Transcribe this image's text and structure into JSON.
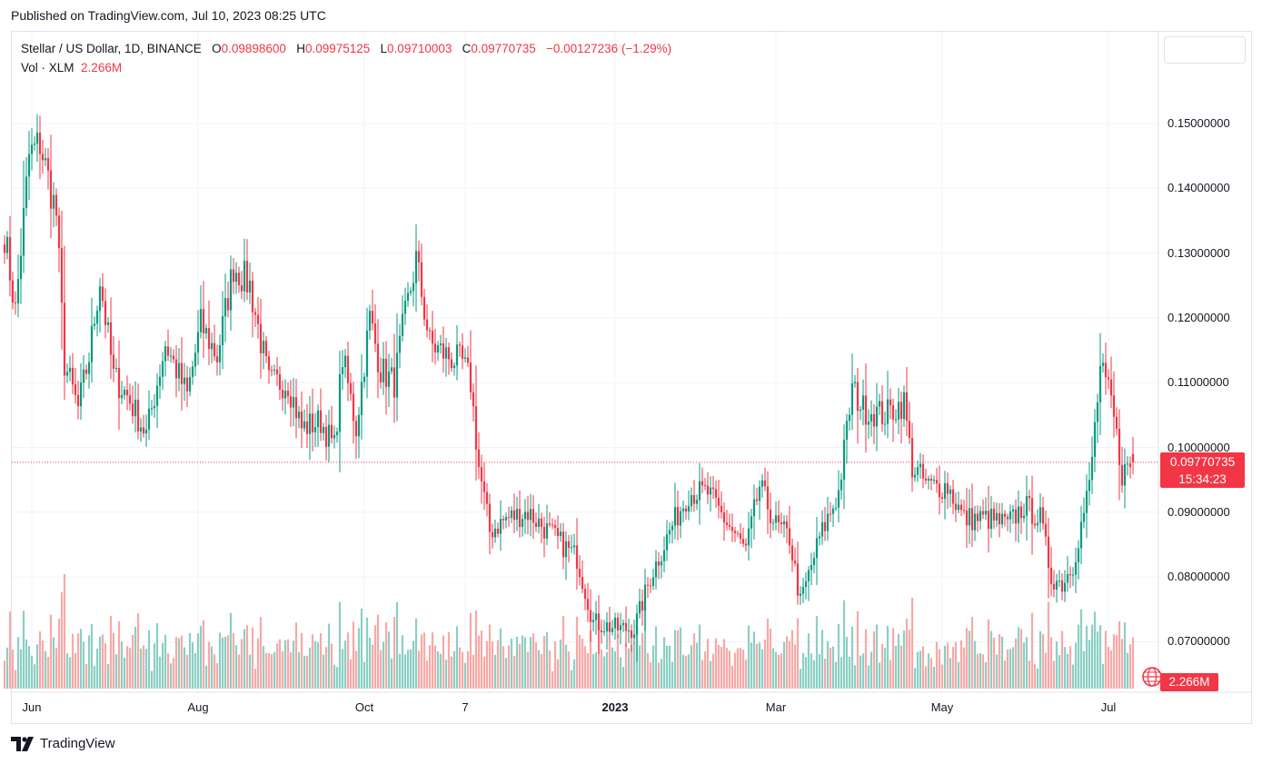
{
  "header": {
    "published": "Published on TradingView.com, Jul 10, 2023 08:25 UTC"
  },
  "legend": {
    "symbol": "Stellar / US Dollar, 1D, BINANCE",
    "o_label": "O",
    "o_value": "0.09898600",
    "h_label": "H",
    "h_value": "0.09975125",
    "l_label": "L",
    "l_value": "0.09710003",
    "c_label": "C",
    "c_value": "0.09770735",
    "change": "−0.00127236 (−1.29%)",
    "vol_label": "Vol · XLM",
    "vol_value": "2.266M"
  },
  "price_badge": {
    "price": "0.09770735",
    "countdown": "15:34:23"
  },
  "volume_badge": "2.266M",
  "footer": {
    "brand": "TradingView"
  },
  "colors": {
    "up": "#089981",
    "down": "#f23645",
    "vol_up": "#8bcfc4",
    "vol_down": "#f7a9a7",
    "grid": "#f0f3fa",
    "border": "#e0e3eb"
  },
  "chart_data": {
    "type": "candlestick",
    "title": "Stellar / US Dollar, 1D, BINANCE",
    "y_ticks": [
      "0.15000000",
      "0.14000000",
      "0.13000000",
      "0.12000000",
      "0.11000000",
      "0.10000000",
      "0.09000000",
      "0.08000000",
      "0.07000000"
    ],
    "y_tick_values": [
      0.15,
      0.14,
      0.13,
      0.12,
      0.11,
      0.1,
      0.09,
      0.08,
      0.07
    ],
    "x_ticks": [
      {
        "label": "Jun",
        "date": "2022-06-01",
        "bold": false
      },
      {
        "label": "Aug",
        "date": "2022-08-01",
        "bold": false
      },
      {
        "label": "Oct",
        "date": "2022-10-01",
        "bold": false
      },
      {
        "label": "7",
        "date": "2022-11-07",
        "bold": false
      },
      {
        "label": "2023",
        "date": "2023-01-01",
        "bold": true
      },
      {
        "label": "Mar",
        "date": "2023-03-01",
        "bold": false
      },
      {
        "label": "May",
        "date": "2023-05-01",
        "bold": false
      },
      {
        "label": "Jul",
        "date": "2023-07-01",
        "bold": false
      }
    ],
    "ylim": [
      0.0625,
      0.158
    ],
    "last_price": 0.09770735,
    "anchors": [
      {
        "date": "2022-05-22",
        "close": 0.133
      },
      {
        "date": "2022-05-26",
        "close": 0.121
      },
      {
        "date": "2022-05-31",
        "close": 0.145
      },
      {
        "date": "2022-06-04",
        "close": 0.147
      },
      {
        "date": "2022-06-10",
        "close": 0.136
      },
      {
        "date": "2022-06-13",
        "close": 0.113
      },
      {
        "date": "2022-06-18",
        "close": 0.106
      },
      {
        "date": "2022-06-22",
        "close": 0.114
      },
      {
        "date": "2022-06-26",
        "close": 0.126
      },
      {
        "date": "2022-07-01",
        "close": 0.111
      },
      {
        "date": "2022-07-06",
        "close": 0.108
      },
      {
        "date": "2022-07-13",
        "close": 0.102
      },
      {
        "date": "2022-07-20",
        "close": 0.116
      },
      {
        "date": "2022-07-28",
        "close": 0.108
      },
      {
        "date": "2022-08-02",
        "close": 0.119
      },
      {
        "date": "2022-08-08",
        "close": 0.114
      },
      {
        "date": "2022-08-14",
        "close": 0.128
      },
      {
        "date": "2022-08-20",
        "close": 0.125
      },
      {
        "date": "2022-08-27",
        "close": 0.11
      },
      {
        "date": "2022-09-03",
        "close": 0.11
      },
      {
        "date": "2022-09-08",
        "close": 0.103
      },
      {
        "date": "2022-09-15",
        "close": 0.104
      },
      {
        "date": "2022-09-20",
        "close": 0.1
      },
      {
        "date": "2022-09-23",
        "close": 0.114
      },
      {
        "date": "2022-09-28",
        "close": 0.103
      },
      {
        "date": "2022-10-03",
        "close": 0.12
      },
      {
        "date": "2022-10-07",
        "close": 0.112
      },
      {
        "date": "2022-10-12",
        "close": 0.11
      },
      {
        "date": "2022-10-15",
        "close": 0.118
      },
      {
        "date": "2022-10-20",
        "close": 0.129
      },
      {
        "date": "2022-10-25",
        "close": 0.116
      },
      {
        "date": "2022-11-01",
        "close": 0.114
      },
      {
        "date": "2022-11-06",
        "close": 0.113
      },
      {
        "date": "2022-11-09",
        "close": 0.11
      },
      {
        "date": "2022-11-12",
        "close": 0.097
      },
      {
        "date": "2022-11-16",
        "close": 0.087
      },
      {
        "date": "2022-11-22",
        "close": 0.089
      },
      {
        "date": "2022-11-30",
        "close": 0.09
      },
      {
        "date": "2022-12-10",
        "close": 0.086
      },
      {
        "date": "2022-12-18",
        "close": 0.083
      },
      {
        "date": "2022-12-24",
        "close": 0.073
      },
      {
        "date": "2023-01-02",
        "close": 0.072
      },
      {
        "date": "2023-01-08",
        "close": 0.072
      },
      {
        "date": "2023-01-14",
        "close": 0.08
      },
      {
        "date": "2023-01-22",
        "close": 0.088
      },
      {
        "date": "2023-01-28",
        "close": 0.093
      },
      {
        "date": "2023-02-04",
        "close": 0.093
      },
      {
        "date": "2023-02-10",
        "close": 0.089
      },
      {
        "date": "2023-02-18",
        "close": 0.084
      },
      {
        "date": "2023-02-23",
        "close": 0.094
      },
      {
        "date": "2023-03-01",
        "close": 0.088
      },
      {
        "date": "2023-03-06",
        "close": 0.086
      },
      {
        "date": "2023-03-10",
        "close": 0.076
      },
      {
        "date": "2023-03-17",
        "close": 0.086
      },
      {
        "date": "2023-03-24",
        "close": 0.093
      },
      {
        "date": "2023-03-29",
        "close": 0.109
      },
      {
        "date": "2023-04-02",
        "close": 0.106
      },
      {
        "date": "2023-04-10",
        "close": 0.105
      },
      {
        "date": "2023-04-17",
        "close": 0.107
      },
      {
        "date": "2023-04-20",
        "close": 0.097
      },
      {
        "date": "2023-04-26",
        "close": 0.094
      },
      {
        "date": "2023-05-03",
        "close": 0.094
      },
      {
        "date": "2023-05-09",
        "close": 0.089
      },
      {
        "date": "2023-05-18",
        "close": 0.089
      },
      {
        "date": "2023-05-25",
        "close": 0.088
      },
      {
        "date": "2023-05-31",
        "close": 0.091
      },
      {
        "date": "2023-06-06",
        "close": 0.089
      },
      {
        "date": "2023-06-10",
        "close": 0.08
      },
      {
        "date": "2023-06-14",
        "close": 0.079
      },
      {
        "date": "2023-06-18",
        "close": 0.082
      },
      {
        "date": "2023-06-24",
        "close": 0.094
      },
      {
        "date": "2023-06-28",
        "close": 0.112
      },
      {
        "date": "2023-07-02",
        "close": 0.107
      },
      {
        "date": "2023-07-06",
        "close": 0.096
      },
      {
        "date": "2023-07-10",
        "close": 0.0977
      }
    ],
    "volume_label": "Vol · XLM",
    "volume_last": "2.266M"
  }
}
